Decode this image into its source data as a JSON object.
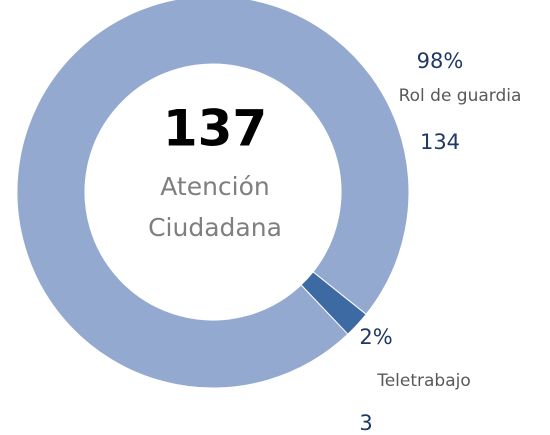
{
  "chart_data": {
    "type": "donut",
    "total": 137,
    "center_label": [
      "Atención",
      "Ciudadana"
    ],
    "categories": [
      "Rol de guardia",
      "Teletrabajo"
    ],
    "values": [
      134,
      3
    ],
    "percent_labels": [
      "98%",
      "2%"
    ],
    "colors": [
      "#94a9d0",
      "#3e6aa3"
    ]
  }
}
